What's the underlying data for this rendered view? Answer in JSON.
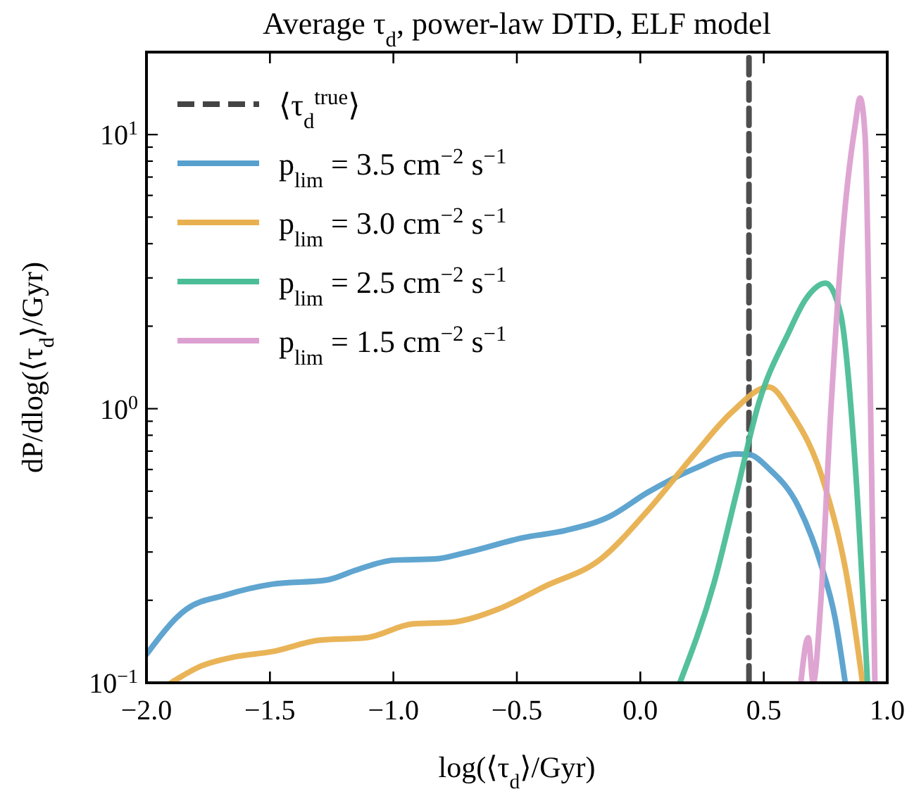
{
  "chart_data": {
    "type": "line",
    "title": "Average τ$_{d}$, power-law DTD, ELF model",
    "xlabel": "log(⟨τ$_{d}$⟩/Gyr)",
    "ylabel": "dP/dlog(⟨τ$_{d}$⟩/Gyr)",
    "log": "y",
    "xlim": [
      -2.0,
      1.0
    ],
    "ylim": [
      0.1,
      20
    ],
    "xticks": [
      {
        "value": -2.0,
        "label": "−2.0"
      },
      {
        "value": -1.5,
        "label": "−1.5"
      },
      {
        "value": -1.0,
        "label": "−1.0"
      },
      {
        "value": -0.5,
        "label": "−0.5"
      },
      {
        "value": 0.0,
        "label": "0.0"
      },
      {
        "value": 0.5,
        "label": "0.5"
      },
      {
        "value": 1.0,
        "label": "1.0"
      }
    ],
    "yticks": [
      {
        "value": 0.1,
        "label": "10$^{−1}$"
      },
      {
        "value": 0.2,
        "label": null
      },
      {
        "value": 0.3,
        "label": null
      },
      {
        "value": 0.4,
        "label": null
      },
      {
        "value": 0.5,
        "label": null
      },
      {
        "value": 0.6,
        "label": null
      },
      {
        "value": 0.7,
        "label": null
      },
      {
        "value": 0.8,
        "label": null
      },
      {
        "value": 0.9,
        "label": null
      },
      {
        "value": 1,
        "label": "10$^{0}$"
      },
      {
        "value": 2,
        "label": null
      },
      {
        "value": 3,
        "label": null
      },
      {
        "value": 4,
        "label": null
      },
      {
        "value": 5,
        "label": null
      },
      {
        "value": 6,
        "label": null
      },
      {
        "value": 7,
        "label": null
      },
      {
        "value": 8,
        "label": null
      },
      {
        "value": 9,
        "label": null
      },
      {
        "value": 10,
        "label": "10$^{1}$"
      },
      {
        "value": 20,
        "label": null
      }
    ],
    "legend": "top left",
    "grid": false,
    "line_style": "solid",
    "marker": "none",
    "series": [
      {
        "name": "⟨τ$_{d}$$^{true}$⟩",
        "color": "#444444",
        "line_style": "dashed",
        "x": [
          0.44,
          0.44
        ],
        "values": [
          0.1,
          20
        ]
      },
      {
        "name": "p$_{lim}$ = 3.5 cm$^{−2}$ s$^{−1}$",
        "color": "#56a0ce",
        "x": [
          -2.0,
          -1.84,
          -1.68,
          -1.49,
          -1.27,
          -1.15,
          -1.0,
          -0.83,
          -0.71,
          -0.47,
          -0.3,
          -0.125,
          0.03,
          0.22,
          0.39,
          0.44,
          0.52,
          0.64,
          0.73,
          0.79,
          0.83
        ],
        "values": [
          0.127,
          0.185,
          0.209,
          0.229,
          0.237,
          0.258,
          0.28,
          0.283,
          0.298,
          0.339,
          0.36,
          0.404,
          0.495,
          0.605,
          0.683,
          0.68,
          0.605,
          0.44,
          0.273,
          0.17,
          0.1
        ]
      },
      {
        "name": "p$_{lim}$ = 3.0 cm$^{−2}$ s$^{−1}$",
        "color": "#e8b04e",
        "x": [
          -1.9,
          -1.78,
          -1.65,
          -1.49,
          -1.3,
          -1.11,
          -0.92,
          -0.77,
          -0.58,
          -0.39,
          -0.16,
          0.03,
          0.22,
          0.37,
          0.52,
          0.61,
          0.75,
          0.84,
          0.9
        ],
        "values": [
          0.1,
          0.115,
          0.124,
          0.13,
          0.143,
          0.146,
          0.164,
          0.166,
          0.185,
          0.224,
          0.283,
          0.425,
          0.683,
          0.97,
          1.2,
          0.97,
          0.513,
          0.234,
          0.1
        ]
      },
      {
        "name": "p$_{lim}$ = 2.5 cm$^{−2}$ s$^{−1}$",
        "color": "#4bbd97",
        "x": [
          0.16,
          0.3,
          0.39,
          0.48,
          0.6,
          0.67,
          0.75,
          0.81,
          0.87,
          0.92
        ],
        "values": [
          0.1,
          0.234,
          0.495,
          1.05,
          1.89,
          2.51,
          2.87,
          2.24,
          0.63,
          0.1
        ]
      },
      {
        "name": "p$_{lim}$ = 1.5 cm$^{−2}$ s$^{−1}$",
        "color": "#dca0d0",
        "x": [
          0.65,
          0.68,
          0.7,
          0.73,
          0.77,
          0.83,
          0.87,
          0.89,
          0.91,
          0.93,
          0.95
        ],
        "values": [
          0.1,
          0.146,
          0.1,
          0.192,
          0.93,
          5.5,
          10.8,
          13.6,
          10,
          1.39,
          0.1
        ]
      }
    ]
  }
}
